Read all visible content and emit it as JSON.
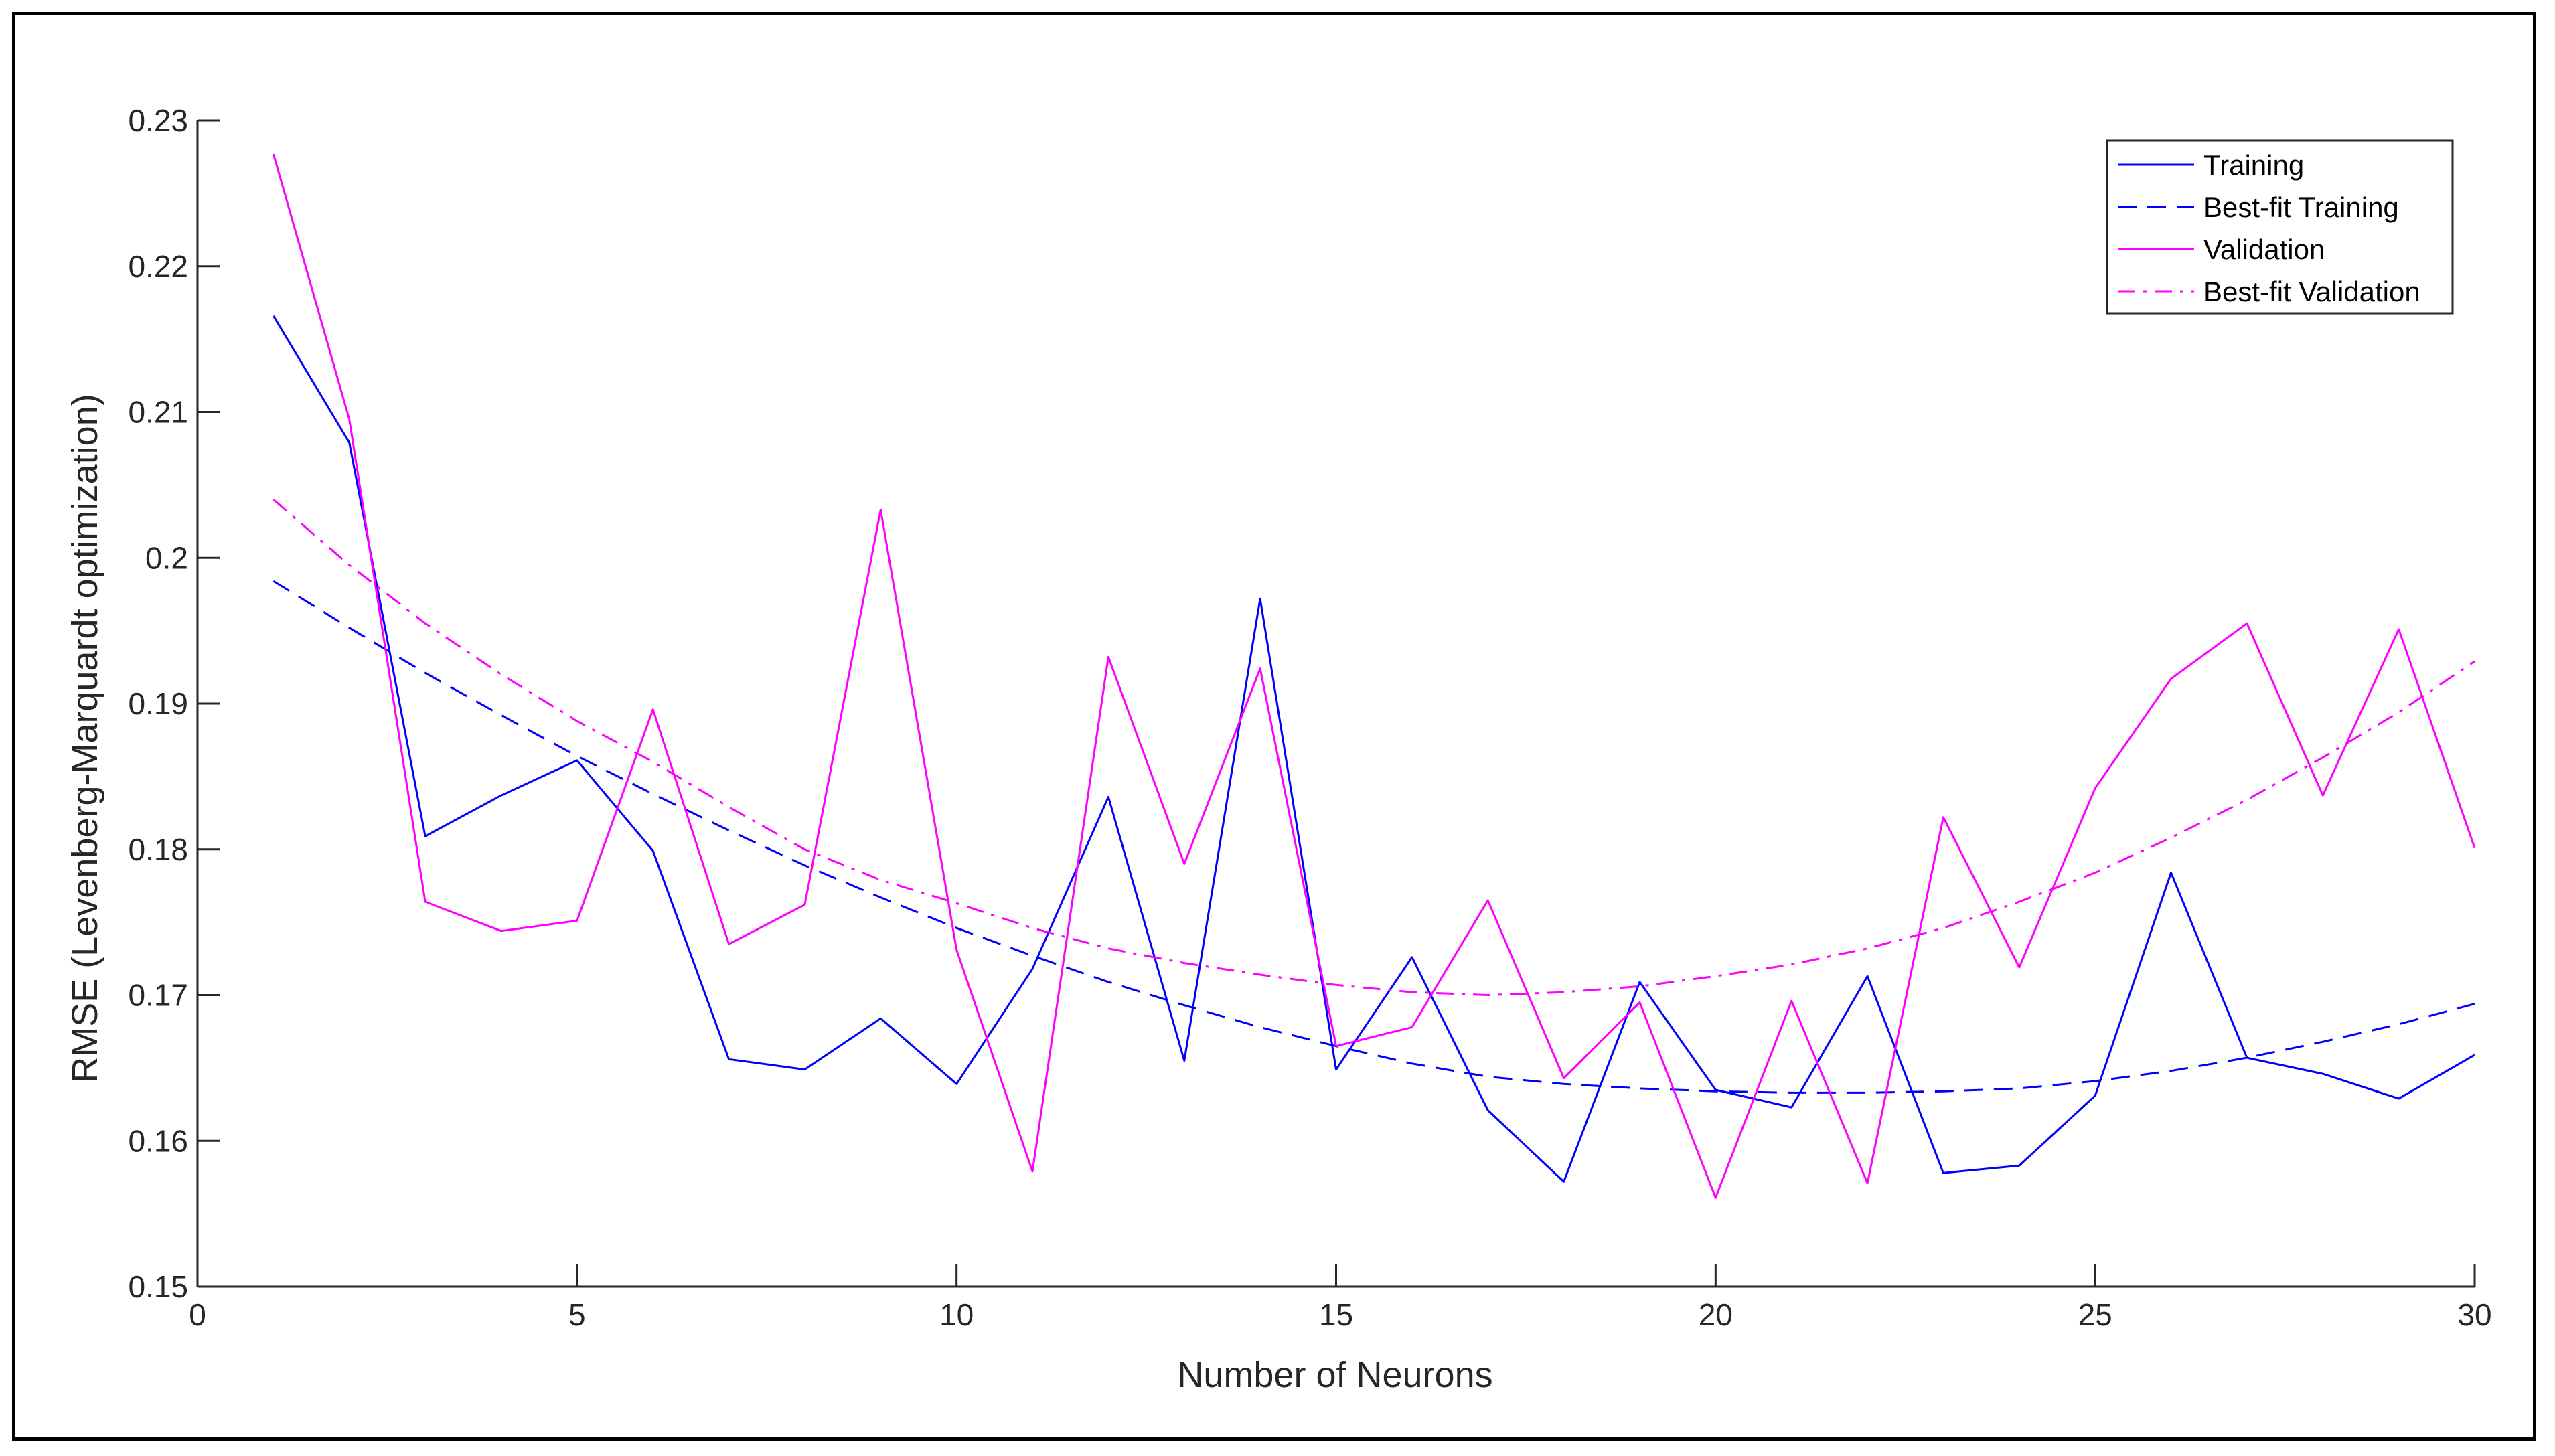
{
  "chart_data": {
    "type": "line",
    "title": "",
    "xlabel": "Number of Neurons",
    "ylabel": "RMSE (Levenberg-Marquardt optimization)",
    "xlim": [
      0,
      30
    ],
    "ylim": [
      0.15,
      0.23
    ],
    "xticks": [
      0,
      5,
      10,
      15,
      20,
      25,
      30
    ],
    "xtick_labels": [
      "0",
      "5",
      "10",
      "15",
      "20",
      "25",
      "30"
    ],
    "yticks": [
      0.15,
      0.16,
      0.17,
      0.18,
      0.19,
      0.2,
      0.21,
      0.22,
      0.23
    ],
    "ytick_labels": [
      "0.15",
      "0.16",
      "0.17",
      "0.18",
      "0.19",
      "0.2",
      "0.21",
      "0.22",
      "0.23"
    ],
    "grid": false,
    "legend_position": "top-right",
    "x": [
      1,
      2,
      3,
      4,
      5,
      6,
      7,
      8,
      9,
      10,
      11,
      12,
      13,
      14,
      15,
      16,
      17,
      18,
      19,
      20,
      21,
      22,
      23,
      24,
      25,
      26,
      27,
      28,
      29,
      30
    ],
    "series": [
      {
        "name": "Training",
        "color": "#0000ff",
        "style": "solid",
        "values": [
          0.2166,
          0.2079,
          0.1809,
          0.1837,
          0.1861,
          0.1799,
          0.1656,
          0.1649,
          0.1684,
          0.1639,
          0.1718,
          0.1836,
          0.1655,
          0.1972,
          0.1649,
          0.1726,
          0.1621,
          0.1572,
          0.1709,
          0.1635,
          0.1623,
          0.1713,
          0.1578,
          0.1583,
          0.1631,
          0.1784,
          0.1657,
          0.1646,
          0.1629,
          0.1659
        ]
      },
      {
        "name": "Best-fit Training",
        "color": "#0000ff",
        "style": "dashed",
        "values": [
          0.1984,
          0.1952,
          0.1921,
          0.1892,
          0.1864,
          0.1838,
          0.1813,
          0.1789,
          0.1767,
          0.1746,
          0.1727,
          0.1709,
          0.1693,
          0.1678,
          0.1665,
          0.1653,
          0.1644,
          0.1639,
          0.1636,
          0.1634,
          0.1633,
          0.1633,
          0.1634,
          0.1636,
          0.1641,
          0.1648,
          0.1657,
          0.1668,
          0.168,
          0.1694
        ]
      },
      {
        "name": "Validation",
        "color": "#ff00ff",
        "style": "solid",
        "values": [
          0.2277,
          0.2095,
          0.1764,
          0.1744,
          0.1751,
          0.1896,
          0.1735,
          0.1762,
          0.2033,
          0.1731,
          0.1579,
          0.1932,
          0.179,
          0.1924,
          0.1665,
          0.1678,
          0.1765,
          0.1643,
          0.1695,
          0.1561,
          0.1696,
          0.1571,
          0.1822,
          0.1719,
          0.1842,
          0.1917,
          0.1955,
          0.1837,
          0.1951,
          0.1801
        ]
      },
      {
        "name": "Best-fit Validation",
        "color": "#ff00ff",
        "style": "dashdot",
        "values": [
          0.204,
          0.1995,
          0.1955,
          0.192,
          0.1888,
          0.186,
          0.1829,
          0.18,
          0.1779,
          0.1763,
          0.1746,
          0.1732,
          0.1722,
          0.1714,
          0.1707,
          0.1702,
          0.17,
          0.1702,
          0.1706,
          0.1713,
          0.1721,
          0.1732,
          0.1746,
          0.1764,
          0.1784,
          0.1808,
          0.1834,
          0.1863,
          0.1894,
          0.1929
        ]
      }
    ]
  }
}
